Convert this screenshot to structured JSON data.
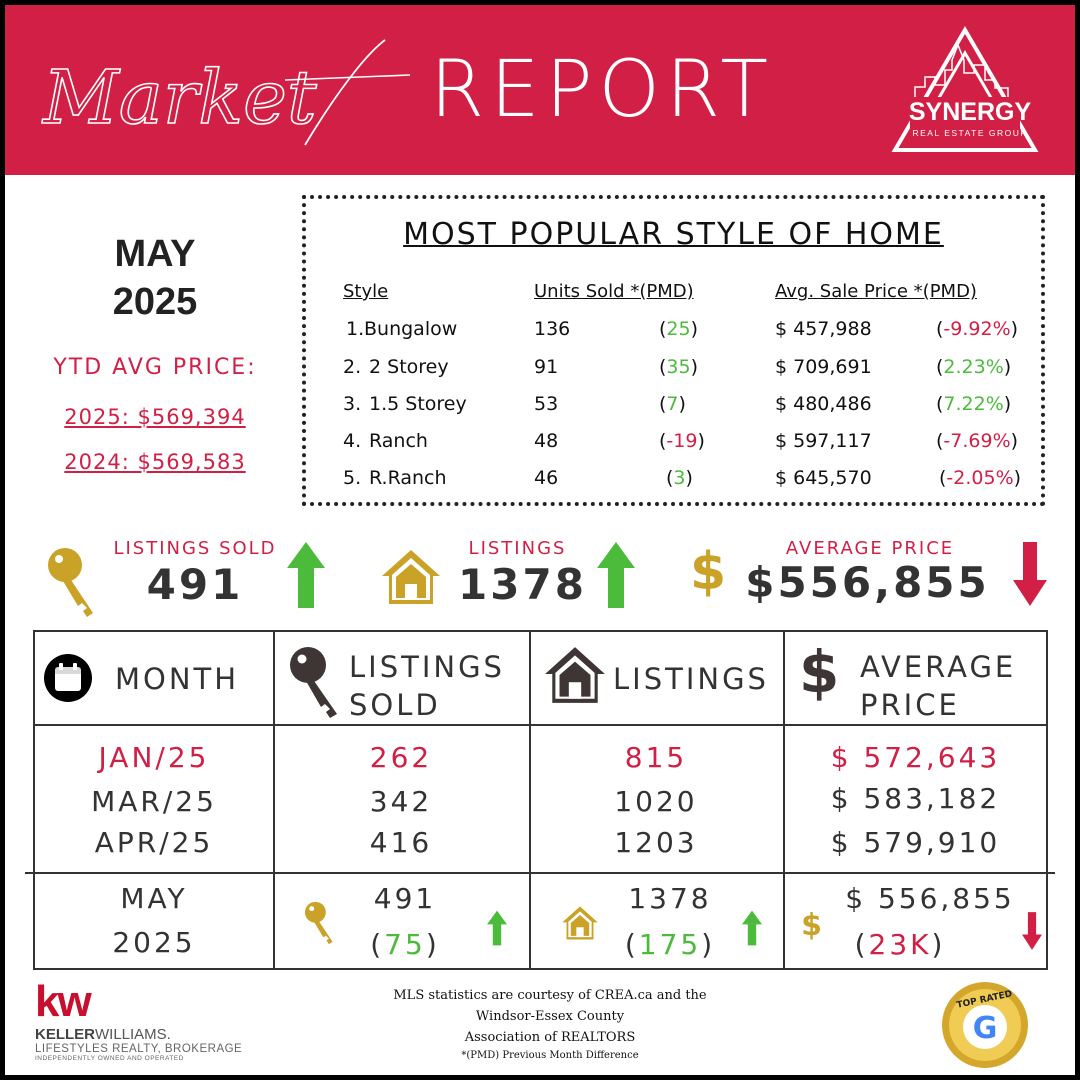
{
  "header": {
    "title_script": "Market",
    "title_main": "REPORT",
    "logo_name": "SYNERGY",
    "logo_sub": "REAL ESTATE GROUP"
  },
  "left": {
    "month": "MAY",
    "year": "2025",
    "ytd_title": "YTD AVG PRICE:",
    "ytd_2025": "2025: $569,394",
    "ytd_2024": "2024: $569,583"
  },
  "popular": {
    "title": "MOST POPULAR STYLE OF HOME",
    "headers": {
      "style": "Style",
      "units": "Units Sold *(PMD)",
      "price": "Avg. Sale Price *(PMD)"
    },
    "rows": [
      {
        "num": "1.",
        "style": "Bungalow",
        "units": "136",
        "units_pmd": "25",
        "price": "$ 457,988",
        "price_pmd": "-9.92%"
      },
      {
        "num": "2.",
        "style": "2 Storey",
        "units": "91",
        "units_pmd": "35",
        "price": "$ 709,691",
        "price_pmd": "2.23%"
      },
      {
        "num": "3.",
        "style": "1.5 Storey",
        "units": "53",
        "units_pmd": "7",
        "price": "$ 480,486",
        "price_pmd": "7.22%"
      },
      {
        "num": "4.",
        "style": "Ranch",
        "units": "48",
        "units_pmd": "-19",
        "price": "$ 597,117",
        "price_pmd": "-7.69%"
      },
      {
        "num": "5.",
        "style": "R.Ranch",
        "units": "46",
        "units_pmd": "3",
        "price": "$ 645,570",
        "price_pmd": "-2.05%"
      }
    ]
  },
  "stats": {
    "sold_label": "LISTINGS SOLD",
    "sold_value": "491",
    "listings_label": "LISTINGS",
    "listings_value": "1378",
    "avg_label": "AVERAGE PRICE",
    "avg_value": "$556,855",
    "dollar_symbol": "$"
  },
  "table": {
    "headers": {
      "month": "MONTH",
      "sold_1": "LISTINGS",
      "sold_2": "SOLD",
      "listings": "LISTINGS",
      "avg_1": "AVERAGE",
      "avg_2": "PRICE"
    },
    "rows": [
      {
        "month": "JAN/25",
        "sold": "262",
        "listings": "815",
        "avg": "$ 572,643"
      },
      {
        "month": "MAR/25",
        "sold": "342",
        "listings": "1020",
        "avg": "$ 583,182"
      },
      {
        "month": "APR/25",
        "sold": "416",
        "listings": "1203",
        "avg": "$ 579,910"
      }
    ],
    "current": {
      "month_1": "MAY",
      "month_2": "2025",
      "sold": "491",
      "sold_diff": "75",
      "listings": "1378",
      "listings_diff": "175",
      "avg": "$ 556,855",
      "avg_diff": "23K",
      "dollar_symbol": "$"
    }
  },
  "footer": {
    "kw_logo": "kw",
    "kw_name_1": "KELLER",
    "kw_name_2": "WILLIAMS.",
    "kw_brokerage": "LIFESTYLES REALTY, BROKERAGE",
    "kw_independent": "INDEPENDENTLY OWNED AND OPERATED",
    "note_1": "MLS statistics are courtesy of CREA.ca and the",
    "note_2": "Windsor-Essex County",
    "note_3": "Association of REALTORS",
    "note_4": "*(PMD) Previous Month Difference",
    "badge_text": "TOP RATED",
    "badge_letter": "G"
  },
  "colors": {
    "brand_red": "#d11f45",
    "gold": "#c9a227",
    "green": "#4cbb3c",
    "dark": "#333333"
  }
}
